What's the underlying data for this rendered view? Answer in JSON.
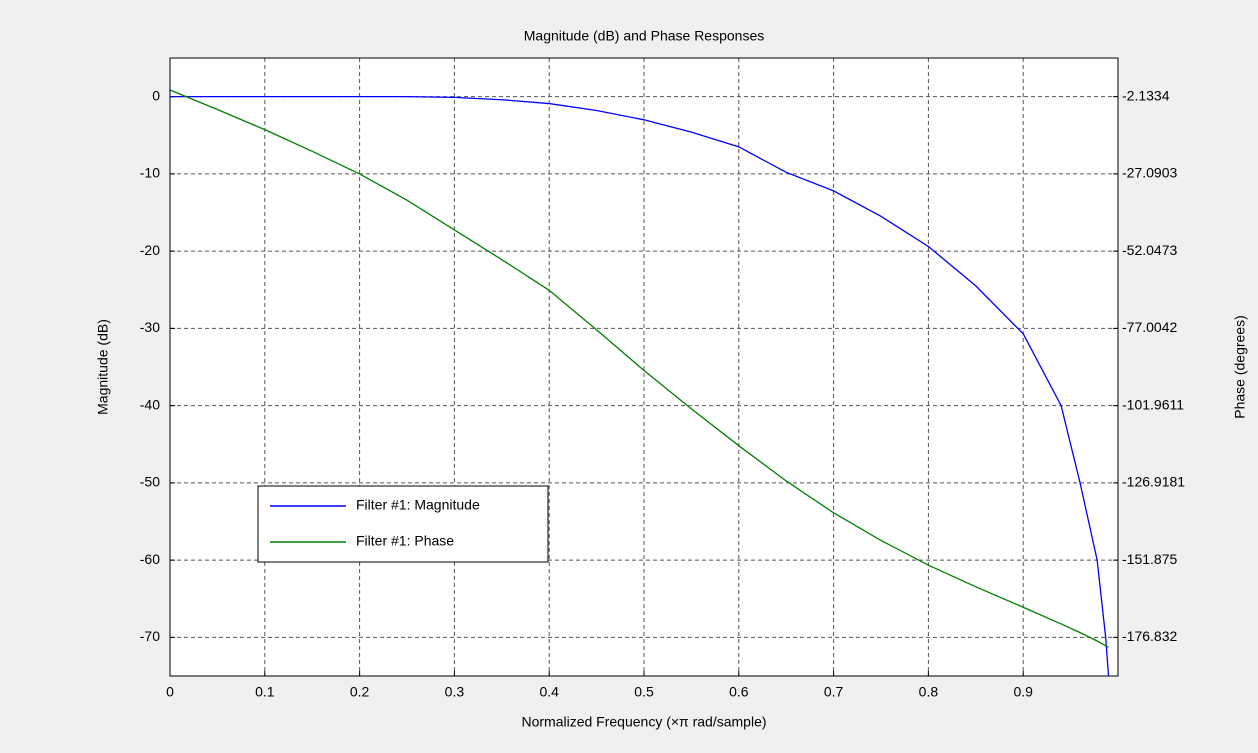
{
  "chart_data": {
    "type": "line",
    "title": "Magnitude (dB) and Phase Responses",
    "xlabel": "Normalized Frequency (×π rad/sample)",
    "ylabel": "Magnitude (dB)",
    "y2label": "Phase (degrees)",
    "x": [
      0,
      0.05,
      0.1,
      0.15,
      0.2,
      0.25,
      0.3,
      0.35,
      0.4,
      0.45,
      0.5,
      0.55,
      0.6,
      0.65,
      0.7,
      0.75,
      0.8,
      0.85,
      0.9,
      0.94,
      0.96,
      0.978,
      0.987,
      0.99
    ],
    "series": [
      {
        "name": "Filter #1: Magnitude",
        "color": "#0000ff",
        "values": [
          0,
          0,
          0,
          0,
          0,
          0,
          -0.1,
          -0.4,
          -0.9,
          -1.8,
          -3,
          -4.6,
          -6.5,
          -9.8,
          -12.2,
          -15.5,
          -19.4,
          -24.5,
          -30.7,
          -40,
          -50,
          -60,
          -70,
          -75
        ]
      },
      {
        "name": "Filter #1: Phase",
        "color": "#008000",
        "axis": "y2",
        "values": [
          0,
          -6.3,
          -12.8,
          -19.8,
          -27.1,
          -35.6,
          -45.2,
          -54.8,
          -64.7,
          -77.5,
          -90.6,
          -103,
          -114.9,
          -126.3,
          -136.6,
          -145.5,
          -153.5,
          -160.5,
          -167.1,
          -172.5,
          -175.3,
          -178,
          -179.5,
          -180
        ]
      }
    ],
    "xlim": [
      0,
      1
    ],
    "xticks": [
      0,
      0.1,
      0.2,
      0.3,
      0.4,
      0.5,
      0.6,
      0.7,
      0.8,
      0.9
    ],
    "ylim": [
      -75,
      5
    ],
    "yticks": [
      -70,
      -60,
      -50,
      -40,
      -30,
      -20,
      -10,
      0
    ],
    "y2lim": [
      -189.31,
      10.345
    ],
    "y2ticks": [
      -176.832,
      -151.875,
      -126.9181,
      -101.9611,
      -77.0042,
      -52.0473,
      -27.0903,
      -2.1334
    ],
    "grid": true,
    "legend": "lower left"
  }
}
